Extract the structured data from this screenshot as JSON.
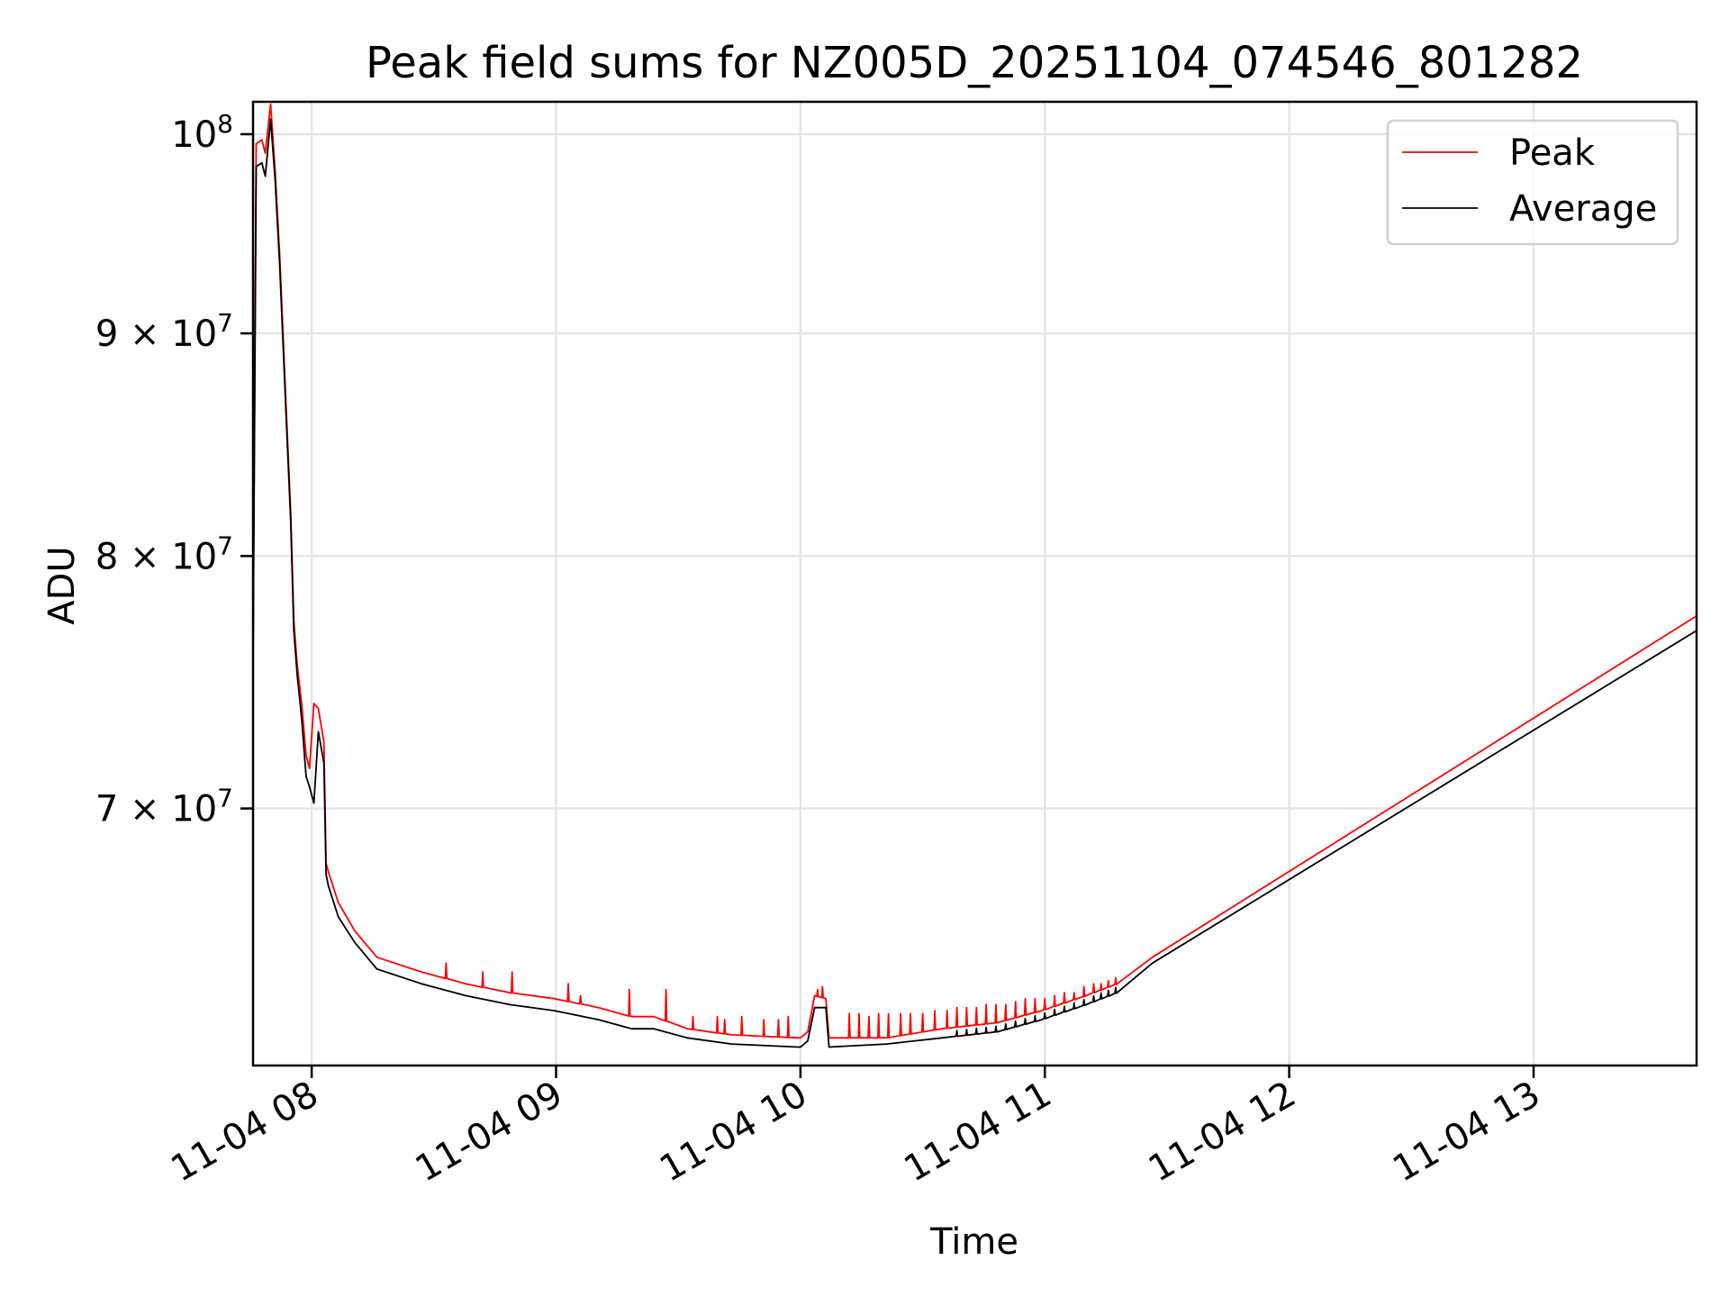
{
  "chart_data": {
    "type": "line",
    "title": "Peak field sums for NZ005D_20251104_074546_801282",
    "xlabel": "Time",
    "ylabel": "ADU",
    "yscale": "log",
    "xlim_hours": [
      7.76,
      13.667
    ],
    "ylim": [
      61100000,
      101730000
    ],
    "grid": true,
    "legend_position": "top-right",
    "x_ticks": [
      {
        "hour": 8,
        "label": "11-04 08"
      },
      {
        "hour": 9,
        "label": "11-04 09"
      },
      {
        "hour": 10,
        "label": "11-04 10"
      },
      {
        "hour": 11,
        "label": "11-04 11"
      },
      {
        "hour": 12,
        "label": "11-04 12"
      },
      {
        "hour": 13,
        "label": "11-04 13"
      }
    ],
    "y_ticks": [
      {
        "value": 100000000,
        "mant": "",
        "base": "10",
        "exp": "8"
      },
      {
        "value": 90000000,
        "mant": "9 × ",
        "base": "10",
        "exp": "7"
      },
      {
        "value": 80000000,
        "mant": "8 × ",
        "base": "10",
        "exp": "7"
      },
      {
        "value": 70000000,
        "mant": "7 × ",
        "base": "10",
        "exp": "7"
      }
    ],
    "series": [
      {
        "name": "Peak",
        "color": "#ff0000",
        "x": [
          7.76,
          7.773,
          7.796,
          7.81,
          7.832,
          7.85,
          7.869,
          7.896,
          7.914,
          7.927,
          7.941,
          7.959,
          7.977,
          7.991,
          8.009,
          8.027,
          8.05,
          8.059,
          8.068,
          8.109,
          8.177,
          8.267,
          8.449,
          8.63,
          8.811,
          8.993,
          9.174,
          9.31,
          9.4,
          9.537,
          9.718,
          9.99,
          10.0,
          10.03,
          10.058,
          10.104,
          10.117,
          10.353,
          10.579,
          10.806,
          10.987,
          11.169,
          11.296,
          11.44,
          13.666
        ],
        "y": [
          76000000.0,
          99500000.0,
          99700000.0,
          99000000.0,
          101600000.0,
          98200000.0,
          93800000.0,
          86400000.0,
          81900000.0,
          77300000.0,
          75500000.0,
          74000000.0,
          72000000.0,
          71500000.0,
          74000000.0,
          73800000.0,
          72500000.0,
          68000000.0,
          67700000.0,
          66600000.0,
          65600000.0,
          64700000.0,
          64200000.0,
          63800000.0,
          63500000.0,
          63300000.0,
          63000000.0,
          62700000.0,
          62700000.0,
          62300000.0,
          62100000.0,
          62000000.0,
          62000000.0,
          62200000.0,
          63400000.0,
          63300000.0,
          62000000.0,
          62000000.0,
          62300000.0,
          62500000.0,
          62900000.0,
          63400000.0,
          63800000.0,
          64700000.0,
          77500000.0
        ]
      },
      {
        "name": "Average",
        "color": "#000000",
        "x": [
          7.76,
          7.773,
          7.796,
          7.81,
          7.832,
          7.85,
          7.869,
          7.896,
          7.914,
          7.927,
          7.941,
          7.959,
          7.977,
          7.991,
          8.009,
          8.027,
          8.05,
          8.059,
          8.068,
          8.109,
          8.177,
          8.267,
          8.449,
          8.63,
          8.811,
          8.993,
          9.174,
          9.31,
          9.4,
          9.537,
          9.718,
          9.99,
          10.0,
          10.03,
          10.058,
          10.104,
          10.117,
          10.353,
          10.579,
          10.806,
          10.987,
          11.169,
          11.296,
          11.44,
          13.666
        ],
        "y": [
          75600000.0,
          98300000.0,
          98500000.0,
          97800000.0,
          100800000.0,
          97700000.0,
          93300000.0,
          86000000.0,
          81500000.0,
          76900000.0,
          75100000.0,
          73400000.0,
          71200000.0,
          70800000.0,
          70200000.0,
          72900000.0,
          71700000.0,
          67600000.0,
          67200000.0,
          66100000.0,
          65200000.0,
          64300000.0,
          63800000.0,
          63400000.0,
          63100000.0,
          62900000.0,
          62600000.0,
          62300000.0,
          62300000.0,
          62000000.0,
          61800000.0,
          61700000.0,
          61700000.0,
          61900000.0,
          63000000.0,
          63000000.0,
          61700000.0,
          61800000.0,
          62000000.0,
          62200000.0,
          62600000.0,
          63100000.0,
          63500000.0,
          64500000.0,
          76900000.0
        ]
      }
    ],
    "peak_spikes": [
      [
        8.55,
        64500000.0
      ],
      [
        8.7,
        64200000.0
      ],
      [
        8.82,
        64200000.0
      ],
      [
        9.05,
        63800000.0
      ],
      [
        9.1,
        63400000.0
      ],
      [
        9.3,
        63600000.0
      ],
      [
        9.45,
        63600000.0
      ],
      [
        9.56,
        62700000.0
      ],
      [
        9.66,
        62700000.0
      ],
      [
        9.69,
        62600000.0
      ],
      [
        9.76,
        62700000.0
      ],
      [
        9.85,
        62600000.0
      ],
      [
        9.91,
        62600000.0
      ],
      [
        9.95,
        62700000.0
      ],
      [
        10.07,
        63600000.0
      ],
      [
        10.09,
        63700000.0
      ],
      [
        10.2,
        62800000.0
      ],
      [
        10.24,
        62800000.0
      ],
      [
        10.28,
        62700000.0
      ],
      [
        10.32,
        62800000.0
      ],
      [
        10.36,
        62800000.0
      ],
      [
        10.41,
        62800000.0
      ],
      [
        10.45,
        62800000.0
      ],
      [
        10.5,
        62800000.0
      ],
      [
        10.55,
        62900000.0
      ],
      [
        10.6,
        62900000.0
      ],
      [
        10.64,
        63000000.0
      ],
      [
        10.68,
        63000000.0
      ],
      [
        10.72,
        63000000.0
      ],
      [
        10.76,
        63100000.0
      ],
      [
        10.8,
        63100000.0
      ],
      [
        10.84,
        63100000.0
      ],
      [
        10.88,
        63200000.0
      ],
      [
        10.92,
        63300000.0
      ],
      [
        10.96,
        63300000.0
      ],
      [
        11.0,
        63300000.0
      ],
      [
        11.04,
        63400000.0
      ],
      [
        11.08,
        63500000.0
      ],
      [
        11.12,
        63500000.0
      ],
      [
        11.16,
        63700000.0
      ],
      [
        11.2,
        63800000.0
      ],
      [
        11.23,
        63800000.0
      ],
      [
        11.26,
        63900000.0
      ],
      [
        11.29,
        64000000.0
      ]
    ]
  }
}
